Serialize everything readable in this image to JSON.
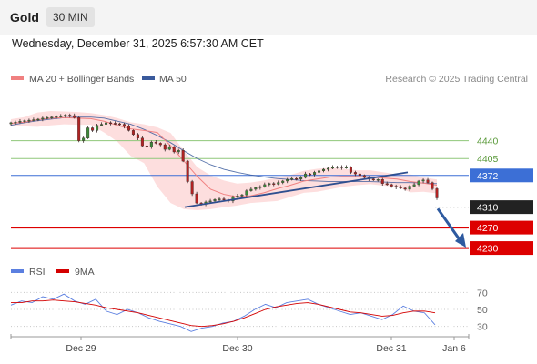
{
  "header": {
    "title": "Gold",
    "timeframe": "30 MIN"
  },
  "timestamp": "Wednesday, December 31, 2025 6:57:30 AM CET",
  "legend": {
    "ma20": "MA 20 + Bollinger Bands",
    "ma50": "MA 50",
    "source": "Research © 2025 Trading Central",
    "rsi": "RSI",
    "rsi_ma": "9MA"
  },
  "colors": {
    "ma20": "#f08080",
    "ma50": "#3a5a9c",
    "bands": "#fdd8d8",
    "resistance": "#8fc77a",
    "pivot": "#3c6fd6",
    "support": "#dd0000",
    "last": "#222222",
    "trendline": "#2f4f8f",
    "arrow": "#2e5aa0",
    "rsi": "#5b7fe0",
    "rsi_ma": "#d40000"
  },
  "chart_data": [
    {
      "type": "candlestick",
      "x_ticks": [
        "Dec 29",
        "Dec 30",
        "Dec 31",
        "Jan 6"
      ],
      "ylim": [
        4215,
        4530
      ],
      "series": [
        {
          "name": "Price (approx. closes)",
          "values": [
            4475,
            4476,
            4478,
            4479,
            4480,
            4481,
            4482,
            4484,
            4485,
            4486,
            4487,
            4488,
            4490,
            4489,
            4485,
            4440,
            4445,
            4465,
            4460,
            4470,
            4472,
            4475,
            4474,
            4473,
            4472,
            4468,
            4460,
            4452,
            4445,
            4430,
            4428,
            4437,
            4435,
            4432,
            4423,
            4428,
            4418,
            4421,
            4400,
            4360,
            4336,
            4318,
            4316,
            4320,
            4322,
            4325,
            4326,
            4324,
            4322,
            4330,
            4332,
            4334,
            4342,
            4345,
            4348,
            4350,
            4354,
            4356,
            4355,
            4358,
            4361,
            4364,
            4366,
            4365,
            4368,
            4375,
            4374,
            4378,
            4381,
            4384,
            4386,
            4388,
            4389,
            4387,
            4388,
            4378,
            4375,
            4372,
            4368,
            4365,
            4363,
            4364,
            4356,
            4354,
            4351,
            4349,
            4347,
            4345,
            4351,
            4354,
            4361,
            4363,
            4358,
            4346,
            4328
          ]
        },
        {
          "name": "MA 20",
          "values": [
            4474,
            4476,
            4481,
            4484,
            4485,
            4484,
            4483,
            4478,
            4470,
            4463,
            4460,
            4456,
            4430,
            4400,
            4370,
            4345,
            4335,
            4330,
            4332,
            4338,
            4346,
            4353,
            4361,
            4365,
            4369,
            4370,
            4370,
            4369,
            4367,
            4365,
            4360,
            4357,
            4353
          ]
        },
        {
          "name": "MA 50",
          "values": [
            4470,
            4475,
            4479,
            4482,
            4485,
            4486,
            4486,
            4484,
            4478,
            4472,
            4462,
            4450,
            4436,
            4420,
            4405,
            4393,
            4384,
            4378,
            4373,
            4369,
            4366,
            4364,
            4362,
            4361,
            4360,
            4360,
            4360,
            4360,
            4359,
            4358,
            4358,
            4357,
            4356
          ]
        },
        {
          "name": "Bollinger upper",
          "values": [
            4482,
            4486,
            4495,
            4498,
            4497,
            4496,
            4494,
            4490,
            4484,
            4476,
            4472,
            4466,
            4455,
            4420,
            4388,
            4372,
            4362,
            4356,
            4358,
            4362,
            4368,
            4373,
            4381,
            4385,
            4387,
            4385,
            4382,
            4382,
            4378,
            4374,
            4374,
            4368,
            4364
          ]
        },
        {
          "name": "Bollinger lower",
          "values": [
            4468,
            4468,
            4467,
            4470,
            4472,
            4471,
            4471,
            4456,
            4438,
            4410,
            4396,
            4350,
            4318,
            4306,
            4304,
            4306,
            4310,
            4313,
            4318,
            4320,
            4322,
            4330,
            4338,
            4340,
            4345,
            4350,
            4353,
            4355,
            4352,
            4350,
            4339,
            4340,
            4337
          ]
        }
      ],
      "levels": [
        {
          "label": "4440",
          "value": 4440,
          "kind": "resistance"
        },
        {
          "label": "4405",
          "value": 4405,
          "kind": "resistance"
        },
        {
          "label": "4372",
          "value": 4372,
          "kind": "pivot"
        },
        {
          "label": "4310",
          "value": 4310,
          "kind": "last"
        },
        {
          "label": "4270",
          "value": 4270,
          "kind": "support"
        },
        {
          "label": "4230",
          "value": 4230,
          "kind": "support"
        }
      ],
      "trendline": {
        "from": 4310,
        "to": 4378
      },
      "arrow_target": 4240
    },
    {
      "type": "line",
      "ylim": [
        20,
        80
      ],
      "y_ticks": [
        "70",
        "50",
        "30"
      ],
      "series": [
        {
          "name": "RSI",
          "values": [
            55,
            60,
            58,
            65,
            62,
            68,
            60,
            56,
            62,
            48,
            44,
            50,
            46,
            40,
            36,
            33,
            30,
            24,
            28,
            30,
            34,
            36,
            42,
            50,
            56,
            52,
            58,
            60,
            62,
            56,
            52,
            48,
            44,
            46,
            42,
            38,
            44,
            54,
            48,
            46,
            32
          ]
        },
        {
          "name": "9MA",
          "values": [
            58,
            58,
            60,
            60,
            61,
            60,
            59,
            57,
            55,
            52,
            50,
            48,
            46,
            43,
            40,
            37,
            34,
            31,
            30,
            31,
            33,
            36,
            40,
            45,
            50,
            53,
            55,
            57,
            58,
            56,
            53,
            50,
            47,
            46,
            44,
            42,
            43,
            46,
            48,
            48,
            46
          ]
        }
      ]
    }
  ]
}
